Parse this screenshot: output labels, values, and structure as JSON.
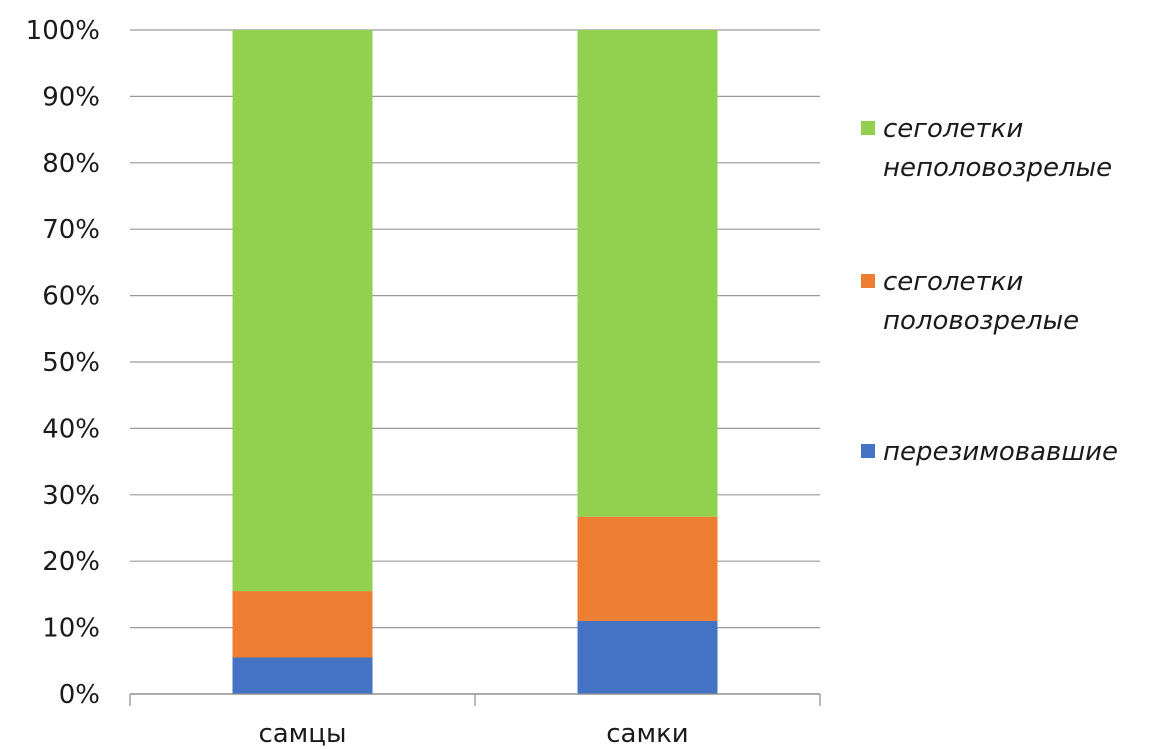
{
  "chart_data": {
    "type": "bar",
    "stacked": true,
    "percent": true,
    "title": "",
    "xlabel": "",
    "ylabel": "",
    "ylim": [
      0,
      100
    ],
    "yticks": [
      "0%",
      "10%",
      "20%",
      "30%",
      "40%",
      "50%",
      "60%",
      "70%",
      "80%",
      "90%",
      "100%"
    ],
    "categories": [
      "самцы",
      "самки"
    ],
    "series": [
      {
        "name": "перезимовавшие",
        "color": "#4472c4",
        "values": [
          5.5,
          11
        ]
      },
      {
        "name": "сеголетки половозрелые",
        "color": "#ed7d31",
        "values": [
          10,
          15.7
        ]
      },
      {
        "name": "сеголетки неполовозрелые",
        "color": "#92d050",
        "values": [
          84.5,
          73.3
        ]
      }
    ],
    "legend": {
      "position": "right",
      "entries": [
        {
          "lines": [
            "сеголетки",
            "неполовозрелые"
          ],
          "color": "#92d050"
        },
        {
          "lines": [
            "сеголетки",
            "половозрелые"
          ],
          "color": "#ed7d31"
        },
        {
          "lines": [
            "перезимовавшие"
          ],
          "color": "#4472c4"
        }
      ]
    },
    "grid": true
  }
}
